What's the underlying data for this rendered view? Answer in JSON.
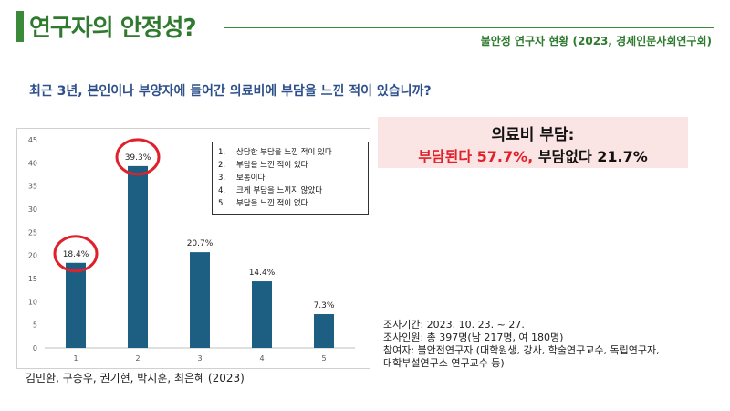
{
  "header": {
    "title": "연구자의 안정성?",
    "subtitle": "불안정 연구자 현황 (2023, 경제인문사회연구회)"
  },
  "question": "최근 3년, 본인이나 부양자에 들어간 의료비에 부담을 느낀 적이 있습니까?",
  "summary": {
    "line1": "의료비 부담:",
    "burden_label": "부담된다",
    "burden_value": "57.7%,",
    "noburden_label": "부담없다 21.7%"
  },
  "survey_info": {
    "period": "조사기간: 2023. 10. 23. ~ 27.",
    "respondents": "조사인원: 총 397명(남 217명, 여 180명)",
    "participants_line1": "참여자: 불안전연구자 (대학원생, 강사, 학술연구교수, 독립연구자,",
    "participants_line2": "대학부설연구소 연구교수 등)"
  },
  "authors": "김민환, 구승우, 권기현, 박지훈, 최은혜 (2023)",
  "legend": [
    {
      "num": "1.",
      "text": "상당한 부담을 느낀 적이 있다"
    },
    {
      "num": "2.",
      "text": "부담을 느낀 적이 있다"
    },
    {
      "num": "3.",
      "text": "보통이다"
    },
    {
      "num": "4.",
      "text": "크게 부담을 느끼지 않았다"
    },
    {
      "num": "5.",
      "text": "부담을 느낀 적이 없다"
    }
  ],
  "chart_data": {
    "type": "bar",
    "categories": [
      "1",
      "2",
      "3",
      "4",
      "5"
    ],
    "values": [
      18.4,
      39.3,
      20.7,
      14.4,
      7.3
    ],
    "data_labels": [
      "18.4%",
      "39.3%",
      "20.7%",
      "14.4%",
      "7.3%"
    ],
    "ylim": [
      0,
      45
    ],
    "yticks": [
      0,
      5,
      10,
      15,
      20,
      25,
      30,
      35,
      40,
      45
    ],
    "highlighted_categories": [
      "1",
      "2"
    ],
    "grid": false,
    "legend_placement": "top-right",
    "colors": {
      "bar": "#1d5f82",
      "highlight": "#e0202a"
    }
  }
}
